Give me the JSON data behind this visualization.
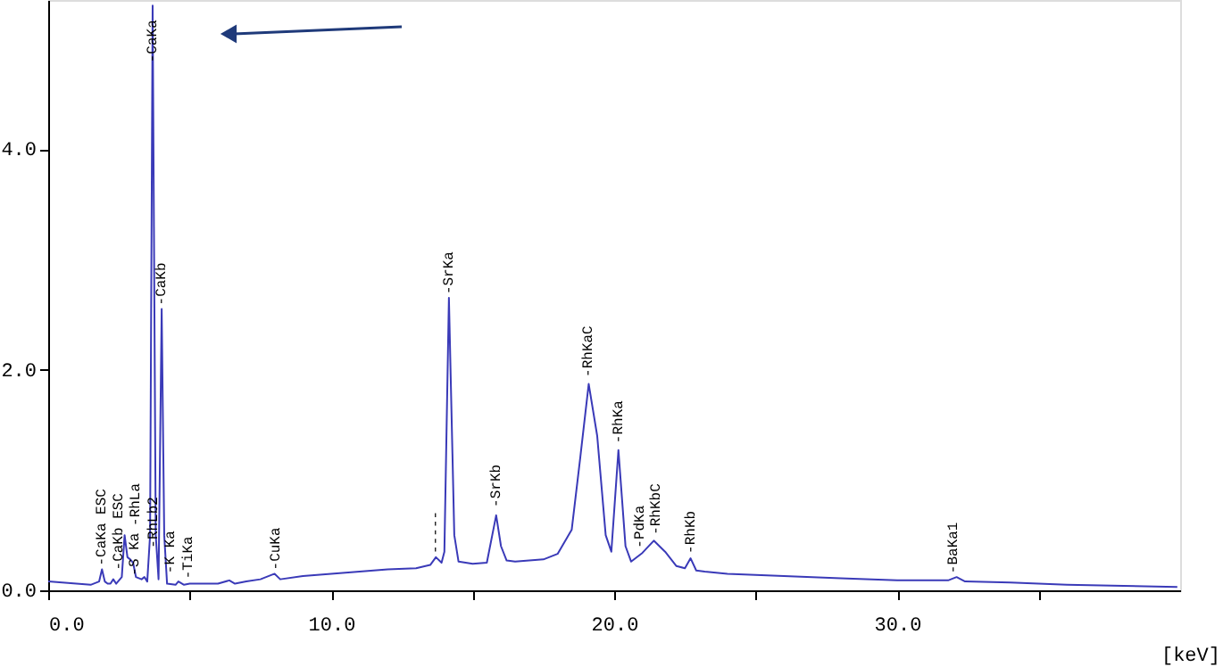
{
  "chart_data": {
    "type": "line",
    "xlabel": "[keV]",
    "x": [
      0.0,
      0.5,
      1.0,
      1.5,
      1.8,
      1.9,
      2.0,
      2.1,
      2.2,
      2.3,
      2.4,
      2.6,
      2.7,
      2.8,
      2.9,
      3.0,
      3.1,
      3.3,
      3.4,
      3.5,
      3.6,
      3.69,
      3.8,
      3.9,
      4.01,
      4.1,
      4.2,
      4.5,
      4.6,
      4.8,
      5.0,
      6.0,
      6.4,
      6.6,
      7.0,
      7.5,
      8.0,
      8.2,
      9.0,
      10.0,
      11.0,
      12.0,
      13.0,
      13.5,
      13.7,
      13.9,
      14.0,
      14.16,
      14.35,
      14.5,
      15.0,
      15.5,
      15.83,
      16.0,
      16.2,
      16.5,
      17.0,
      17.5,
      18.0,
      18.5,
      18.8,
      19.1,
      19.4,
      19.7,
      19.9,
      20.15,
      20.4,
      20.6,
      21.0,
      21.4,
      21.8,
      22.2,
      22.5,
      22.7,
      22.9,
      23.2,
      24.0,
      26.0,
      28.0,
      30.0,
      31.8,
      32.1,
      32.4,
      34.0,
      36.0,
      38.0,
      39.9
    ],
    "series": [
      {
        "color": "#3a3ab8",
        "values": [
          0.08,
          0.07,
          0.06,
          0.05,
          0.08,
          0.19,
          0.08,
          0.06,
          0.06,
          0.1,
          0.06,
          0.12,
          0.5,
          0.3,
          0.28,
          0.25,
          0.12,
          0.1,
          0.12,
          0.08,
          0.5,
          5.3,
          0.5,
          0.1,
          2.55,
          0.5,
          0.06,
          0.05,
          0.08,
          0.05,
          0.06,
          0.06,
          0.09,
          0.06,
          0.08,
          0.1,
          0.15,
          0.1,
          0.13,
          0.15,
          0.17,
          0.19,
          0.2,
          0.23,
          0.3,
          0.25,
          0.35,
          2.65,
          0.5,
          0.26,
          0.24,
          0.25,
          0.68,
          0.4,
          0.27,
          0.26,
          0.27,
          0.28,
          0.33,
          0.55,
          1.2,
          1.87,
          1.4,
          0.5,
          0.35,
          1.27,
          0.4,
          0.26,
          0.34,
          0.45,
          0.35,
          0.22,
          0.2,
          0.29,
          0.18,
          0.17,
          0.15,
          0.13,
          0.11,
          0.09,
          0.09,
          0.12,
          0.08,
          0.07,
          0.05,
          0.04,
          0.03
        ]
      }
    ],
    "xlim": [
      0,
      40
    ],
    "ylim": [
      0,
      5.35
    ],
    "xticks": [
      {
        "value": 0,
        "label": "0.0"
      },
      {
        "value": 5,
        "label": null
      },
      {
        "value": 10,
        "label": "10.0"
      },
      {
        "value": 15,
        "label": null
      },
      {
        "value": 20,
        "label": "20.0"
      },
      {
        "value": 25,
        "label": null
      },
      {
        "value": 30,
        "label": "30.0"
      },
      {
        "value": 35,
        "label": null
      }
    ],
    "yticks": [
      {
        "value": 0,
        "label": "0.0"
      },
      {
        "value": 2,
        "label": "2.0"
      },
      {
        "value": 4,
        "label": "4.0"
      }
    ],
    "grid": false,
    "annotations": [
      {
        "text": "-CaKa ESC",
        "x": 1.9,
        "y": 0.19
      },
      {
        "text": "-CaKb ESC",
        "x": 2.1,
        "y": 0.15
      },
      {
        "text": "-S Ka",
        "x": 2.3,
        "y": 0.1
      },
      {
        "text": "-RhLa",
        "x": 2.65,
        "y": 0.55
      },
      {
        "text": "-RhLb2",
        "x": 2.9,
        "y": 0.35
      },
      {
        "text": "-K Ka",
        "x": 3.2,
        "y": 0.12
      },
      {
        "text": "-CaKa",
        "x": 3.69,
        "y": 4.75
      },
      {
        "text": "-CaKb",
        "x": 4.01,
        "y": 2.55
      },
      {
        "text": "-TiKa",
        "x": 4.5,
        "y": 0.07
      },
      {
        "text": "-CuKa",
        "x": 8.04,
        "y": 0.15
      },
      {
        "text": "-----",
        "x": 13.7,
        "y": 0.3
      },
      {
        "text": "-SrKa",
        "x": 14.16,
        "y": 2.65
      },
      {
        "text": "-SrKb",
        "x": 15.83,
        "y": 0.72
      },
      {
        "text": "-RhKaC",
        "x": 19.1,
        "y": 1.9
      },
      {
        "text": "-RhKa",
        "x": 20.15,
        "y": 1.3
      },
      {
        "text": "-PdKa",
        "x": 20.9,
        "y": 0.35
      },
      {
        "text": "-RhKbC",
        "x": 21.35,
        "y": 0.47
      },
      {
        "text": "-RhKb",
        "x": 22.7,
        "y": 0.3
      },
      {
        "text": "-BaKa1",
        "x": 32.0,
        "y": 0.12
      }
    ]
  }
}
